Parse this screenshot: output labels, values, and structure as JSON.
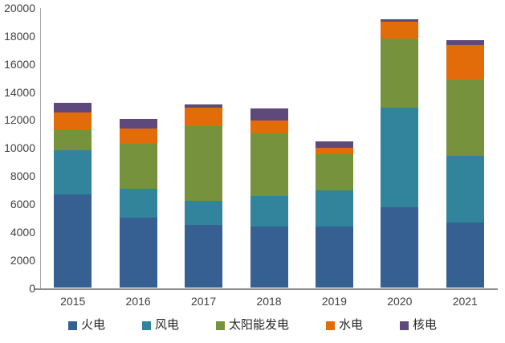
{
  "chart_data": {
    "type": "bar",
    "stacked": true,
    "title": "",
    "xlabel": "",
    "ylabel": "",
    "categories": [
      "2015",
      "2016",
      "2017",
      "2018",
      "2019",
      "2020",
      "2021"
    ],
    "series": [
      {
        "name": "火电",
        "color": "#376092",
        "values": [
          6700,
          5050,
          4500,
          4400,
          4400,
          5750,
          4700
        ]
      },
      {
        "name": "风电",
        "color": "#31849B",
        "values": [
          3150,
          2050,
          1700,
          2150,
          2600,
          7150,
          4750
        ]
      },
      {
        "name": "太阳能发电",
        "color": "#76923C",
        "values": [
          1400,
          3200,
          5350,
          4500,
          2550,
          4900,
          5450
        ]
      },
      {
        "name": "水电",
        "color": "#E36C0A",
        "values": [
          1300,
          1100,
          1350,
          900,
          450,
          1250,
          2450
        ]
      },
      {
        "name": "核电",
        "color": "#5F497A",
        "values": [
          650,
          700,
          200,
          850,
          500,
          150,
          350
        ]
      }
    ],
    "totals": [
      13200,
      12100,
      13100,
      12800,
      10500,
      19200,
      17700
    ],
    "ylim": [
      0,
      20000
    ],
    "y_ticks": [
      0,
      2000,
      4000,
      6000,
      8000,
      10000,
      12000,
      14000,
      16000,
      18000,
      20000
    ],
    "grid": false,
    "legend_position": "bottom",
    "axis_line_color_y": "#A6A6A6",
    "axis_line_color_x": "#8C8C8C",
    "tick_label_color": "#404040"
  }
}
